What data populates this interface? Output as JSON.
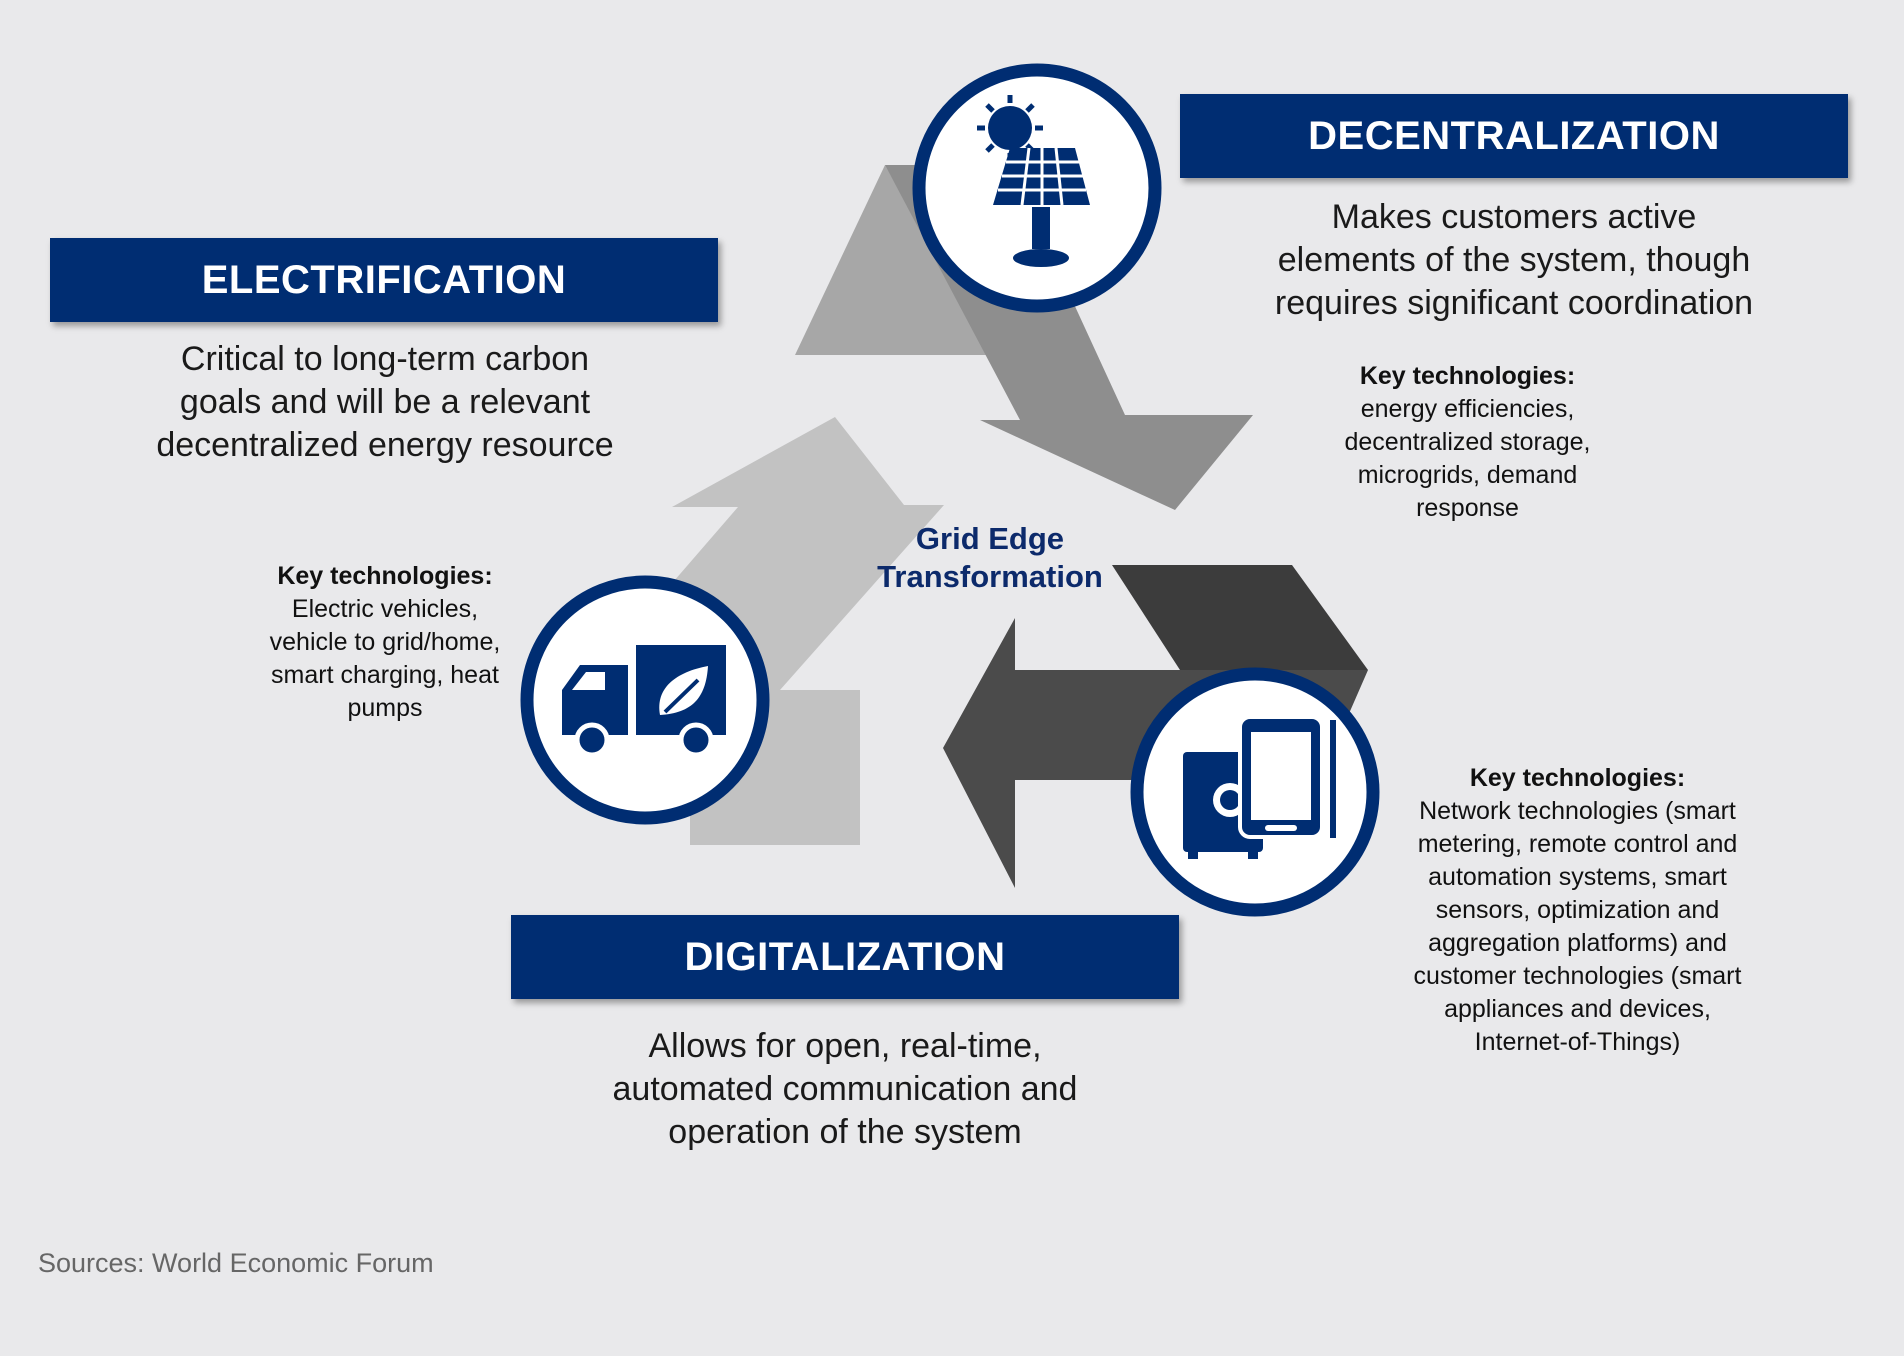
{
  "center": {
    "lines": [
      "Grid Edge",
      "Transformation"
    ]
  },
  "electrification": {
    "title": "ELECTRIFICATION",
    "description": [
      "Critical to long-term carbon",
      "goals and will be a relevant",
      "decentralized energy resource"
    ],
    "key_tech_title": "Key technologies:",
    "key_tech_lines": [
      "Electric vehicles,",
      "vehicle to grid/home,",
      "smart charging, heat",
      "pumps"
    ],
    "icon": "electric-truck-icon"
  },
  "decentralization": {
    "title": "DECENTRALIZATION",
    "description": [
      "Makes customers active",
      "elements of the system, though",
      "requires significant coordination"
    ],
    "key_tech_title": "Key technologies:",
    "key_tech_lines": [
      "energy efficiencies,",
      "decentralized storage,",
      "microgrids, demand",
      "response"
    ],
    "icon": "solar-panel-icon"
  },
  "digitalization": {
    "title": "DIGITALIZATION",
    "description": [
      "Allows for open, real-time,",
      "automated communication and",
      "operation of the system"
    ],
    "key_tech_title": "Key technologies:",
    "key_tech_lines": [
      "Network technologies (smart",
      "metering, remote control and",
      "automation systems, smart",
      "sensors, optimization and",
      "aggregation platforms) and",
      "customer technologies (smart",
      "appliances and devices,",
      "Internet-of-Things)"
    ],
    "icon": "smart-devices-icon"
  },
  "source": "Sources: World Economic Forum",
  "colors": {
    "background": "#e9e9eb",
    "banner": "#002d72",
    "arrow_light": "#c2c2c2",
    "arrow_mid": "#8e8e8e",
    "arrow_dark": "#444444"
  }
}
